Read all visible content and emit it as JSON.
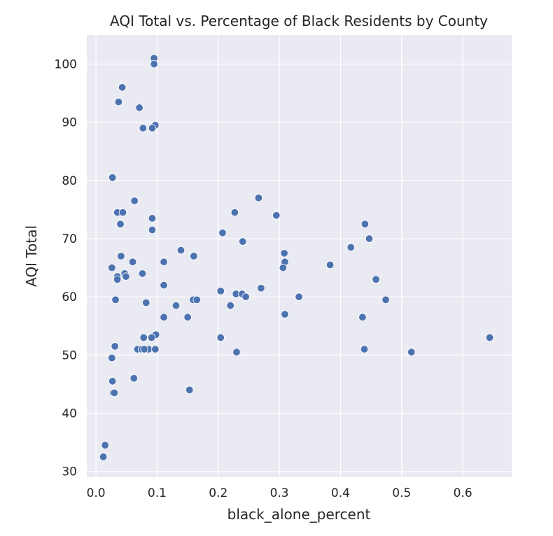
{
  "chart_data": {
    "type": "scatter",
    "title": "AQI Total vs. Percentage of Black Residents by County",
    "xlabel": "black_alone_percent",
    "ylabel": "AQI Total",
    "xlim": [
      -0.015,
      0.68
    ],
    "ylim": [
      29,
      105
    ],
    "xticks": [
      0.0,
      0.1,
      0.2,
      0.3,
      0.4,
      0.5,
      0.6
    ],
    "xtick_labels": [
      "0.0",
      "0.1",
      "0.2",
      "0.3",
      "0.4",
      "0.5",
      "0.6"
    ],
    "yticks": [
      30,
      40,
      50,
      60,
      70,
      80,
      90,
      100
    ],
    "ytick_labels": [
      "30",
      "40",
      "50",
      "60",
      "70",
      "80",
      "90",
      "100"
    ],
    "grid": true,
    "background": "#eaeaf2",
    "grid_color": "#ffffff",
    "point_color": "#4c72b0",
    "series": [
      {
        "x": [
          0.095,
          0.095,
          0.043,
          0.037,
          0.071,
          0.097,
          0.092,
          0.077,
          0.027,
          0.063,
          0.035,
          0.044,
          0.092,
          0.04,
          0.092,
          0.041,
          0.026,
          0.06,
          0.035,
          0.047,
          0.049,
          0.076,
          0.035,
          0.032,
          0.082,
          0.111,
          0.111,
          0.111,
          0.139,
          0.131,
          0.16,
          0.159,
          0.165,
          0.15,
          0.153,
          0.03,
          0.031,
          0.026,
          0.027,
          0.028,
          0.03,
          0.062,
          0.068,
          0.068,
          0.075,
          0.078,
          0.086,
          0.098,
          0.097,
          0.091,
          0.079,
          0.012,
          0.015,
          0.015,
          0.207,
          0.227,
          0.24,
          0.266,
          0.295,
          0.204,
          0.229,
          0.239,
          0.245,
          0.22,
          0.27,
          0.308,
          0.309,
          0.306,
          0.332,
          0.309,
          0.204,
          0.23,
          0.383,
          0.417,
          0.44,
          0.447,
          0.458,
          0.474,
          0.436,
          0.439,
          0.516,
          0.644
        ],
        "y": [
          101,
          100,
          96,
          93.5,
          92.5,
          89.5,
          89,
          89,
          80.5,
          76.5,
          74.5,
          74.5,
          73.5,
          72.5,
          71.5,
          67,
          65,
          66,
          63.5,
          64,
          63.5,
          64,
          63,
          59.5,
          59,
          66,
          62,
          56.5,
          68,
          58.5,
          67,
          59.5,
          59.5,
          56.5,
          44,
          51.5,
          51.5,
          49.5,
          45.5,
          43.5,
          43.5,
          46,
          51,
          51,
          51,
          53,
          51,
          53.5,
          51,
          53,
          51,
          32.5,
          34.5,
          34.5,
          71,
          74.5,
          69.5,
          77,
          74,
          61,
          60.5,
          60.5,
          60,
          58.5,
          61.5,
          67.5,
          66,
          65,
          60,
          57,
          53,
          50.5,
          65.5,
          68.5,
          72.5,
          70,
          63,
          59.5,
          56.5,
          51,
          50.5,
          53
        ]
      }
    ]
  }
}
